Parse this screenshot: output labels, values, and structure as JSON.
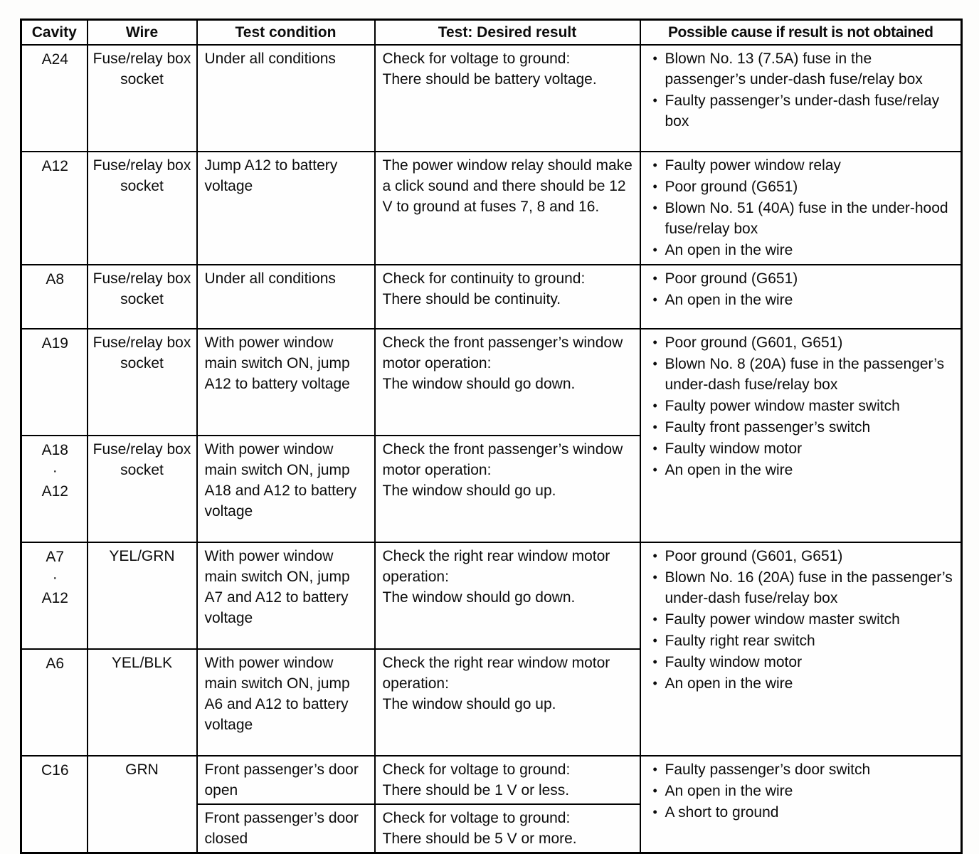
{
  "page": {
    "background": "#fdfdfc",
    "text_color": "#0c0c0c",
    "border_color": "#000000"
  },
  "table": {
    "headers": [
      "Cavity",
      "Wire",
      "Test condition",
      "Test: Desired result",
      "Possible cause if result is not obtained"
    ],
    "rows": [
      {
        "cavity": "A24",
        "wire": "Fuse/relay box socket",
        "condition": "Under all conditions",
        "result": "Check for voltage to ground:\nThere should be battery voltage.",
        "causes": [
          "Blown No. 13 (7.5A) fuse in the passenger’s under-dash fuse/relay box",
          "Faulty passenger’s under-dash fuse/relay box"
        ]
      },
      {
        "cavity": "A12",
        "wire": "Fuse/relay box socket",
        "condition": "Jump A12 to battery voltage",
        "result": "The power window relay should make a click sound and there should be 12 V to ground at fuses 7, 8 and 16.",
        "causes": [
          "Faulty power window relay",
          "Poor ground (G651)",
          "Blown No. 51 (40A) fuse in the under-hood fuse/relay box",
          "An open in the wire"
        ]
      },
      {
        "cavity": "A8",
        "wire": "Fuse/relay box socket",
        "condition": "Under all conditions",
        "result": "Check for continuity to ground:\nThere should be continuity.",
        "causes": [
          "Poor ground (G651)",
          "An open in the wire"
        ]
      },
      {
        "cavity": "A19",
        "wire": "Fuse/relay box socket",
        "condition": "With power window main switch ON, jump A12 to battery voltage",
        "result": "Check the front passenger’s window motor operation:\nThe window should go down.",
        "causes": [
          "Poor ground (G601, G651)",
          "Blown No. 8 (20A) fuse in the passenger’s under-dash fuse/relay box",
          "Faulty power window master switch",
          "Faulty front passenger’s switch",
          "Faulty window motor",
          "An open in the wire"
        ]
      },
      {
        "cavity": "A18\n·\nA12",
        "wire": "Fuse/relay box socket",
        "condition": "With power window main switch ON, jump A18 and A12 to battery voltage",
        "result": "Check the front passenger’s window motor operation:\nThe window should go up."
      },
      {
        "cavity": "A7\n·\nA12",
        "wire": "YEL/GRN",
        "condition": "With power window main switch ON, jump A7 and A12 to battery voltage",
        "result": "Check the right rear window motor operation:\nThe window should go down.",
        "causes": [
          "Poor ground (G601, G651)",
          "Blown No. 16 (20A) fuse in the passenger’s under-dash fuse/relay box",
          "Faulty power window master switch",
          "Faulty right rear switch",
          "Faulty window motor",
          "An open in the wire"
        ]
      },
      {
        "cavity": "A6",
        "wire": "YEL/BLK",
        "condition": "With power window main switch ON, jump A6 and A12 to battery voltage",
        "result": "Check the right rear window motor operation:\nThe window should go up."
      },
      {
        "cavity": "C16",
        "wire": "GRN",
        "sub_rows": [
          {
            "condition": "Front passenger’s door open",
            "result": "Check for voltage to ground:\nThere should be 1 V or less."
          },
          {
            "condition": "Front passenger’s door closed",
            "result": "Check for voltage to ground:\nThere should be 5 V or more."
          }
        ],
        "causes": [
          "Faulty passenger’s door switch",
          "An open in the wire",
          "A short to ground"
        ]
      }
    ]
  }
}
